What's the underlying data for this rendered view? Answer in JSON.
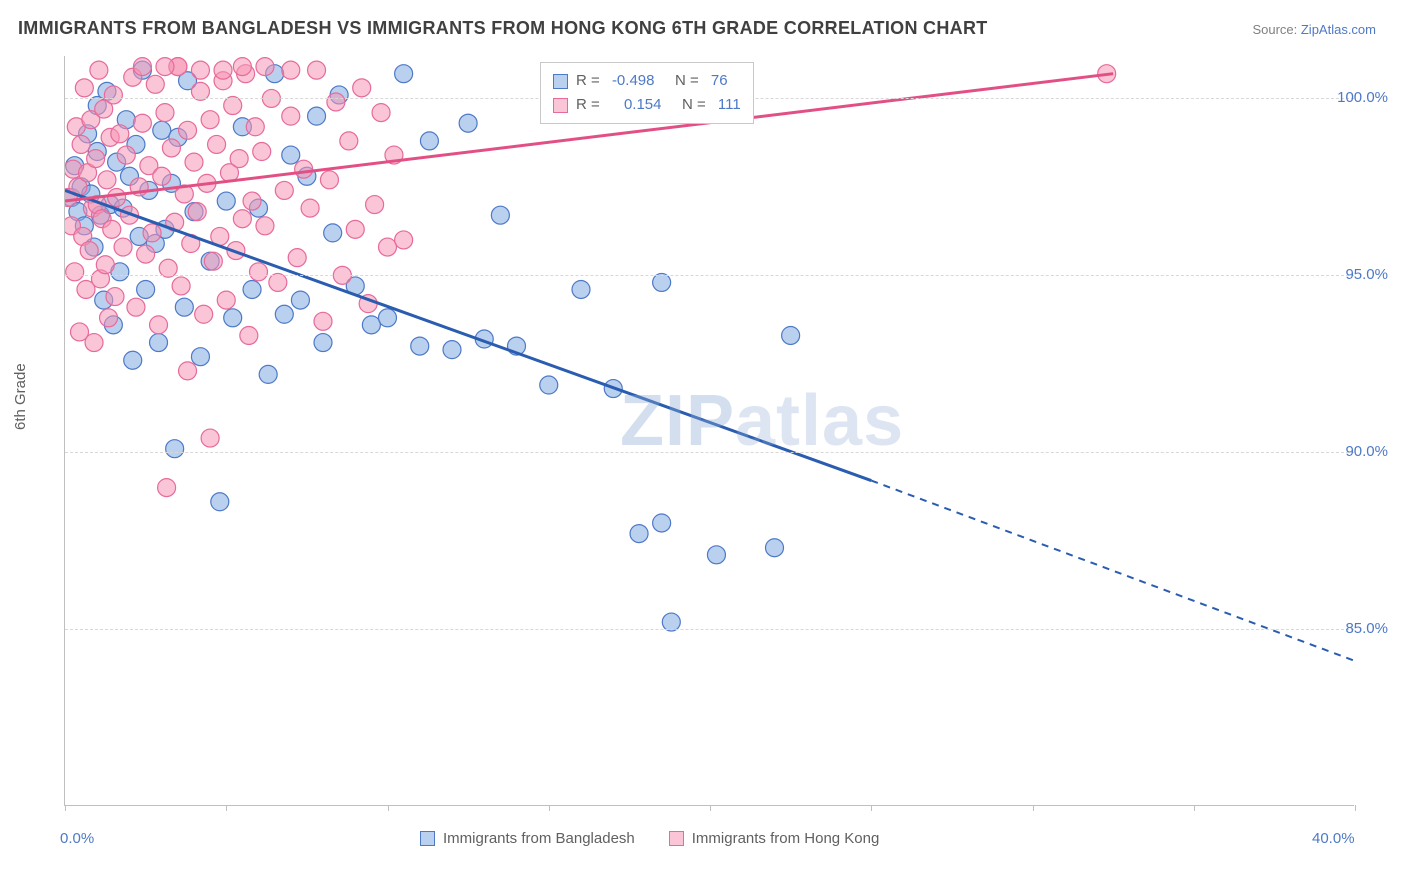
{
  "title": "IMMIGRANTS FROM BANGLADESH VS IMMIGRANTS FROM HONG KONG 6TH GRADE CORRELATION CHART",
  "source_label": "Source: ",
  "source_link": "ZipAtlas.com",
  "watermark_zip": "ZIP",
  "watermark_atlas": "atlas",
  "chart": {
    "type": "scatter-correlation",
    "ylabel": "6th Grade",
    "xlim": [
      0,
      40
    ],
    "ylim": [
      80,
      101.2
    ],
    "xticks": [
      0,
      5,
      10,
      15,
      20,
      25,
      30,
      35,
      40
    ],
    "xtick_labels": {
      "0": "0.0%",
      "40": "40.0%"
    },
    "yticks": [
      85,
      90,
      95,
      100
    ],
    "ytick_labels": [
      "85.0%",
      "90.0%",
      "95.0%",
      "100.0%"
    ],
    "grid_color": "#d8d8d8",
    "background_color": "#ffffff",
    "series": [
      {
        "name": "Immigrants from Bangladesh",
        "fill": "rgba(130,170,225,0.55)",
        "stroke": "#4d79c7",
        "line_color": "#2a5db0",
        "R": "-0.498",
        "N": "76",
        "regression": {
          "x1": 0,
          "y1": 97.4,
          "x2": 25,
          "y2": 89.2,
          "dash_from_x": 25,
          "dash_to_x": 40,
          "dash_to_y": 84.1
        },
        "points": [
          [
            0.2,
            97.2
          ],
          [
            0.3,
            98.1
          ],
          [
            0.4,
            96.8
          ],
          [
            0.5,
            97.5
          ],
          [
            0.6,
            96.4
          ],
          [
            0.7,
            99.0
          ],
          [
            0.8,
            97.3
          ],
          [
            0.9,
            95.8
          ],
          [
            1.0,
            98.5
          ],
          [
            1.0,
            99.8
          ],
          [
            1.1,
            96.7
          ],
          [
            1.2,
            94.3
          ],
          [
            1.3,
            100.2
          ],
          [
            1.4,
            97.0
          ],
          [
            1.5,
            93.6
          ],
          [
            1.6,
            98.2
          ],
          [
            1.7,
            95.1
          ],
          [
            1.8,
            96.9
          ],
          [
            1.9,
            99.4
          ],
          [
            2.0,
            97.8
          ],
          [
            2.1,
            92.6
          ],
          [
            2.2,
            98.7
          ],
          [
            2.3,
            96.1
          ],
          [
            2.4,
            100.8
          ],
          [
            2.5,
            94.6
          ],
          [
            2.6,
            97.4
          ],
          [
            2.8,
            95.9
          ],
          [
            2.9,
            93.1
          ],
          [
            3.0,
            99.1
          ],
          [
            3.1,
            96.3
          ],
          [
            3.3,
            97.6
          ],
          [
            3.4,
            90.1
          ],
          [
            3.5,
            98.9
          ],
          [
            3.7,
            94.1
          ],
          [
            3.8,
            100.5
          ],
          [
            4.0,
            96.8
          ],
          [
            4.2,
            92.7
          ],
          [
            4.5,
            95.4
          ],
          [
            4.8,
            88.6
          ],
          [
            5.0,
            97.1
          ],
          [
            5.2,
            93.8
          ],
          [
            5.5,
            99.2
          ],
          [
            5.8,
            94.6
          ],
          [
            6.0,
            96.9
          ],
          [
            6.3,
            92.2
          ],
          [
            6.5,
            100.7
          ],
          [
            6.8,
            93.9
          ],
          [
            7.0,
            98.4
          ],
          [
            7.3,
            94.3
          ],
          [
            7.5,
            97.8
          ],
          [
            7.8,
            99.5
          ],
          [
            8.0,
            93.1
          ],
          [
            8.3,
            96.2
          ],
          [
            8.5,
            100.1
          ],
          [
            9.0,
            94.7
          ],
          [
            9.5,
            93.6
          ],
          [
            10.0,
            93.8
          ],
          [
            10.5,
            100.7
          ],
          [
            11.0,
            93.0
          ],
          [
            11.3,
            98.8
          ],
          [
            12.0,
            92.9
          ],
          [
            12.5,
            99.3
          ],
          [
            13.0,
            93.2
          ],
          [
            13.5,
            96.7
          ],
          [
            14.0,
            93.0
          ],
          [
            15.0,
            91.9
          ],
          [
            16.0,
            94.6
          ],
          [
            17.0,
            91.8
          ],
          [
            17.8,
            87.7
          ],
          [
            18.5,
            88.0
          ],
          [
            18.5,
            94.8
          ],
          [
            18.8,
            85.2
          ],
          [
            20.2,
            87.1
          ],
          [
            22.0,
            87.3
          ],
          [
            22.5,
            93.3
          ]
        ]
      },
      {
        "name": "Immigrants from Hong Kong",
        "fill": "rgba(245,150,180,0.55)",
        "stroke": "#e76a9a",
        "line_color": "#e24f84",
        "R": "0.154",
        "N": "111",
        "regression": {
          "x1": 0,
          "y1": 97.1,
          "x2": 32.5,
          "y2": 100.7
        },
        "points": [
          [
            0.1,
            97.2
          ],
          [
            0.2,
            96.4
          ],
          [
            0.25,
            98.0
          ],
          [
            0.3,
            95.1
          ],
          [
            0.35,
            99.2
          ],
          [
            0.4,
            97.5
          ],
          [
            0.45,
            93.4
          ],
          [
            0.5,
            98.7
          ],
          [
            0.55,
            96.1
          ],
          [
            0.6,
            100.3
          ],
          [
            0.65,
            94.6
          ],
          [
            0.7,
            97.9
          ],
          [
            0.75,
            95.7
          ],
          [
            0.8,
            99.4
          ],
          [
            0.85,
            96.9
          ],
          [
            0.9,
            93.1
          ],
          [
            0.95,
            98.3
          ],
          [
            1.0,
            97.0
          ],
          [
            1.05,
            100.8
          ],
          [
            1.1,
            94.9
          ],
          [
            1.15,
            96.6
          ],
          [
            1.2,
            99.7
          ],
          [
            1.25,
            95.3
          ],
          [
            1.3,
            97.7
          ],
          [
            1.35,
            93.8
          ],
          [
            1.4,
            98.9
          ],
          [
            1.45,
            96.3
          ],
          [
            1.5,
            100.1
          ],
          [
            1.55,
            94.4
          ],
          [
            1.6,
            97.2
          ],
          [
            1.7,
            99.0
          ],
          [
            1.8,
            95.8
          ],
          [
            1.9,
            98.4
          ],
          [
            2.0,
            96.7
          ],
          [
            2.1,
            100.6
          ],
          [
            2.2,
            94.1
          ],
          [
            2.3,
            97.5
          ],
          [
            2.4,
            99.3
          ],
          [
            2.5,
            95.6
          ],
          [
            2.6,
            98.1
          ],
          [
            2.7,
            96.2
          ],
          [
            2.8,
            100.4
          ],
          [
            2.9,
            93.6
          ],
          [
            3.0,
            97.8
          ],
          [
            3.1,
            99.6
          ],
          [
            3.15,
            89.0
          ],
          [
            3.2,
            95.2
          ],
          [
            3.3,
            98.6
          ],
          [
            3.4,
            96.5
          ],
          [
            3.5,
            100.9
          ],
          [
            3.6,
            94.7
          ],
          [
            3.7,
            97.3
          ],
          [
            3.8,
            92.3
          ],
          [
            3.8,
            99.1
          ],
          [
            3.9,
            95.9
          ],
          [
            4.0,
            98.2
          ],
          [
            4.1,
            96.8
          ],
          [
            4.2,
            100.2
          ],
          [
            4.3,
            93.9
          ],
          [
            4.4,
            97.6
          ],
          [
            4.5,
            90.4
          ],
          [
            4.5,
            99.4
          ],
          [
            4.6,
            95.4
          ],
          [
            4.7,
            98.7
          ],
          [
            4.8,
            96.1
          ],
          [
            4.9,
            100.5
          ],
          [
            5.0,
            94.3
          ],
          [
            5.1,
            97.9
          ],
          [
            5.2,
            99.8
          ],
          [
            5.3,
            95.7
          ],
          [
            5.4,
            98.3
          ],
          [
            5.5,
            96.6
          ],
          [
            5.6,
            100.7
          ],
          [
            5.7,
            93.3
          ],
          [
            5.8,
            97.1
          ],
          [
            5.9,
            99.2
          ],
          [
            6.0,
            95.1
          ],
          [
            6.1,
            98.5
          ],
          [
            6.2,
            96.4
          ],
          [
            6.4,
            100.0
          ],
          [
            6.6,
            94.8
          ],
          [
            6.8,
            97.4
          ],
          [
            7.0,
            99.5
          ],
          [
            7.2,
            95.5
          ],
          [
            7.4,
            98.0
          ],
          [
            7.6,
            96.9
          ],
          [
            7.8,
            100.8
          ],
          [
            8.0,
            93.7
          ],
          [
            8.2,
            97.7
          ],
          [
            8.4,
            99.9
          ],
          [
            8.6,
            95.0
          ],
          [
            8.8,
            98.8
          ],
          [
            9.0,
            96.3
          ],
          [
            9.2,
            100.3
          ],
          [
            9.4,
            94.2
          ],
          [
            9.6,
            97.0
          ],
          [
            9.8,
            99.6
          ],
          [
            10.0,
            95.8
          ],
          [
            10.2,
            98.4
          ],
          [
            10.5,
            96.0
          ],
          [
            3.5,
            100.9
          ],
          [
            4.2,
            100.8
          ],
          [
            4.9,
            100.8
          ],
          [
            5.5,
            100.9
          ],
          [
            6.2,
            100.9
          ],
          [
            7.0,
            100.8
          ],
          [
            3.1,
            100.9
          ],
          [
            2.4,
            100.9
          ],
          [
            32.3,
            100.7
          ]
        ]
      }
    ]
  },
  "legend_box": {
    "row1_pre": "R = ",
    "row1_mid": "   N = ",
    "row2_pre": "R = ",
    "row2_mid": "   N = "
  }
}
